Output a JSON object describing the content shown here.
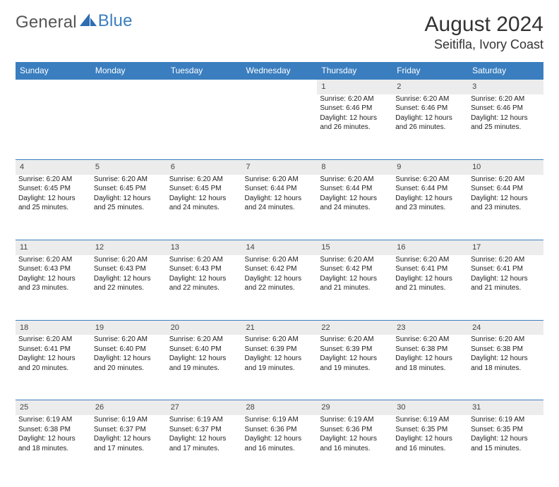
{
  "brand": {
    "part1": "General",
    "part2": "Blue"
  },
  "title": "August 2024",
  "location": "Seitifla, Ivory Coast",
  "styling": {
    "header_bg": "#3a7ebf",
    "header_fg": "#ffffff",
    "daynum_bg": "#ececec",
    "page_bg": "#ffffff",
    "text_color": "#222222",
    "font_family": "Arial",
    "month_fontsize_pt": 22,
    "location_fontsize_pt": 13,
    "dayheader_fontsize_pt": 9,
    "cell_fontsize_pt": 7.5
  },
  "day_headers": [
    "Sunday",
    "Monday",
    "Tuesday",
    "Wednesday",
    "Thursday",
    "Friday",
    "Saturday"
  ],
  "weeks": [
    {
      "nums": [
        "",
        "",
        "",
        "",
        "1",
        "2",
        "3"
      ],
      "cells": [
        null,
        null,
        null,
        null,
        {
          "sunrise": "Sunrise: 6:20 AM",
          "sunset": "Sunset: 6:46 PM",
          "day1": "Daylight: 12 hours",
          "day2": "and 26 minutes."
        },
        {
          "sunrise": "Sunrise: 6:20 AM",
          "sunset": "Sunset: 6:46 PM",
          "day1": "Daylight: 12 hours",
          "day2": "and 26 minutes."
        },
        {
          "sunrise": "Sunrise: 6:20 AM",
          "sunset": "Sunset: 6:46 PM",
          "day1": "Daylight: 12 hours",
          "day2": "and 25 minutes."
        }
      ]
    },
    {
      "nums": [
        "4",
        "5",
        "6",
        "7",
        "8",
        "9",
        "10"
      ],
      "cells": [
        {
          "sunrise": "Sunrise: 6:20 AM",
          "sunset": "Sunset: 6:45 PM",
          "day1": "Daylight: 12 hours",
          "day2": "and 25 minutes."
        },
        {
          "sunrise": "Sunrise: 6:20 AM",
          "sunset": "Sunset: 6:45 PM",
          "day1": "Daylight: 12 hours",
          "day2": "and 25 minutes."
        },
        {
          "sunrise": "Sunrise: 6:20 AM",
          "sunset": "Sunset: 6:45 PM",
          "day1": "Daylight: 12 hours",
          "day2": "and 24 minutes."
        },
        {
          "sunrise": "Sunrise: 6:20 AM",
          "sunset": "Sunset: 6:44 PM",
          "day1": "Daylight: 12 hours",
          "day2": "and 24 minutes."
        },
        {
          "sunrise": "Sunrise: 6:20 AM",
          "sunset": "Sunset: 6:44 PM",
          "day1": "Daylight: 12 hours",
          "day2": "and 24 minutes."
        },
        {
          "sunrise": "Sunrise: 6:20 AM",
          "sunset": "Sunset: 6:44 PM",
          "day1": "Daylight: 12 hours",
          "day2": "and 23 minutes."
        },
        {
          "sunrise": "Sunrise: 6:20 AM",
          "sunset": "Sunset: 6:44 PM",
          "day1": "Daylight: 12 hours",
          "day2": "and 23 minutes."
        }
      ]
    },
    {
      "nums": [
        "11",
        "12",
        "13",
        "14",
        "15",
        "16",
        "17"
      ],
      "cells": [
        {
          "sunrise": "Sunrise: 6:20 AM",
          "sunset": "Sunset: 6:43 PM",
          "day1": "Daylight: 12 hours",
          "day2": "and 23 minutes."
        },
        {
          "sunrise": "Sunrise: 6:20 AM",
          "sunset": "Sunset: 6:43 PM",
          "day1": "Daylight: 12 hours",
          "day2": "and 22 minutes."
        },
        {
          "sunrise": "Sunrise: 6:20 AM",
          "sunset": "Sunset: 6:43 PM",
          "day1": "Daylight: 12 hours",
          "day2": "and 22 minutes."
        },
        {
          "sunrise": "Sunrise: 6:20 AM",
          "sunset": "Sunset: 6:42 PM",
          "day1": "Daylight: 12 hours",
          "day2": "and 22 minutes."
        },
        {
          "sunrise": "Sunrise: 6:20 AM",
          "sunset": "Sunset: 6:42 PM",
          "day1": "Daylight: 12 hours",
          "day2": "and 21 minutes."
        },
        {
          "sunrise": "Sunrise: 6:20 AM",
          "sunset": "Sunset: 6:41 PM",
          "day1": "Daylight: 12 hours",
          "day2": "and 21 minutes."
        },
        {
          "sunrise": "Sunrise: 6:20 AM",
          "sunset": "Sunset: 6:41 PM",
          "day1": "Daylight: 12 hours",
          "day2": "and 21 minutes."
        }
      ]
    },
    {
      "nums": [
        "18",
        "19",
        "20",
        "21",
        "22",
        "23",
        "24"
      ],
      "cells": [
        {
          "sunrise": "Sunrise: 6:20 AM",
          "sunset": "Sunset: 6:41 PM",
          "day1": "Daylight: 12 hours",
          "day2": "and 20 minutes."
        },
        {
          "sunrise": "Sunrise: 6:20 AM",
          "sunset": "Sunset: 6:40 PM",
          "day1": "Daylight: 12 hours",
          "day2": "and 20 minutes."
        },
        {
          "sunrise": "Sunrise: 6:20 AM",
          "sunset": "Sunset: 6:40 PM",
          "day1": "Daylight: 12 hours",
          "day2": "and 19 minutes."
        },
        {
          "sunrise": "Sunrise: 6:20 AM",
          "sunset": "Sunset: 6:39 PM",
          "day1": "Daylight: 12 hours",
          "day2": "and 19 minutes."
        },
        {
          "sunrise": "Sunrise: 6:20 AM",
          "sunset": "Sunset: 6:39 PM",
          "day1": "Daylight: 12 hours",
          "day2": "and 19 minutes."
        },
        {
          "sunrise": "Sunrise: 6:20 AM",
          "sunset": "Sunset: 6:38 PM",
          "day1": "Daylight: 12 hours",
          "day2": "and 18 minutes."
        },
        {
          "sunrise": "Sunrise: 6:20 AM",
          "sunset": "Sunset: 6:38 PM",
          "day1": "Daylight: 12 hours",
          "day2": "and 18 minutes."
        }
      ]
    },
    {
      "nums": [
        "25",
        "26",
        "27",
        "28",
        "29",
        "30",
        "31"
      ],
      "cells": [
        {
          "sunrise": "Sunrise: 6:19 AM",
          "sunset": "Sunset: 6:38 PM",
          "day1": "Daylight: 12 hours",
          "day2": "and 18 minutes."
        },
        {
          "sunrise": "Sunrise: 6:19 AM",
          "sunset": "Sunset: 6:37 PM",
          "day1": "Daylight: 12 hours",
          "day2": "and 17 minutes."
        },
        {
          "sunrise": "Sunrise: 6:19 AM",
          "sunset": "Sunset: 6:37 PM",
          "day1": "Daylight: 12 hours",
          "day2": "and 17 minutes."
        },
        {
          "sunrise": "Sunrise: 6:19 AM",
          "sunset": "Sunset: 6:36 PM",
          "day1": "Daylight: 12 hours",
          "day2": "and 16 minutes."
        },
        {
          "sunrise": "Sunrise: 6:19 AM",
          "sunset": "Sunset: 6:36 PM",
          "day1": "Daylight: 12 hours",
          "day2": "and 16 minutes."
        },
        {
          "sunrise": "Sunrise: 6:19 AM",
          "sunset": "Sunset: 6:35 PM",
          "day1": "Daylight: 12 hours",
          "day2": "and 16 minutes."
        },
        {
          "sunrise": "Sunrise: 6:19 AM",
          "sunset": "Sunset: 6:35 PM",
          "day1": "Daylight: 12 hours",
          "day2": "and 15 minutes."
        }
      ]
    }
  ]
}
